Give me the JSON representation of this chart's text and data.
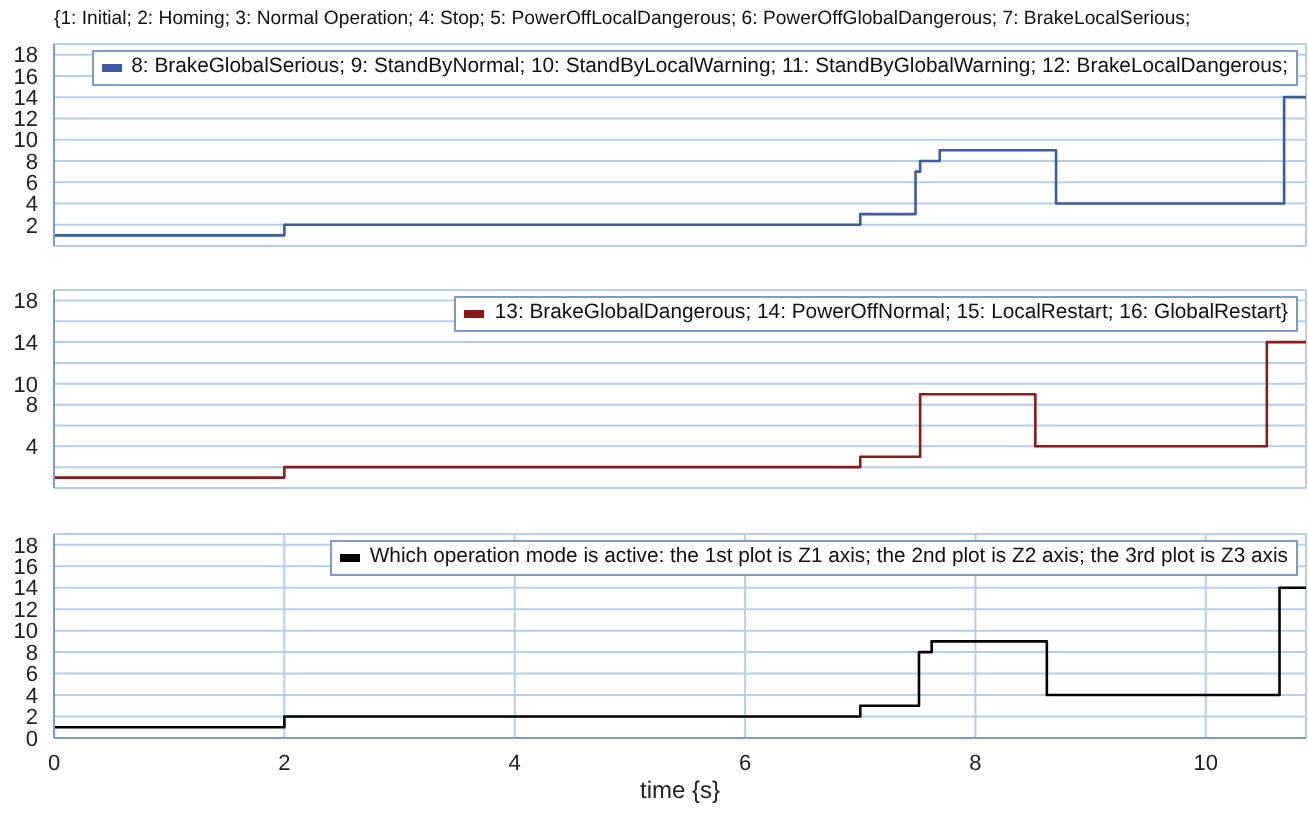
{
  "chart_data": [
    {
      "type": "step",
      "title": "{1: Initial; 2: Homing; 3: Normal Operation; 4: Stop; 5: PowerOffLocalDangerous; 6: PowerOffGlobalDangerous; 7: BrakeLocalSerious;",
      "series": [
        {
          "name": "8: BrakeGlobalSerious; 9: StandByNormal; 10: StandByLocalWarning; 11: StandByGlobalWarning; 12: BrakeLocalDangerous;",
          "color": "#3b5ba5",
          "x": [
            0,
            2,
            7,
            7.48,
            7.52,
            7.69,
            8.7,
            10.68,
            10.87
          ],
          "values": [
            1,
            2,
            3,
            7,
            8,
            9,
            4,
            14,
            14
          ]
        }
      ],
      "xlim": [
        0,
        10.87
      ],
      "xticks": [
        0,
        2,
        4,
        6,
        8,
        10
      ],
      "ylim": [
        0,
        19
      ],
      "yticks": [
        2,
        4,
        6,
        8,
        10,
        12,
        14,
        16,
        18
      ],
      "grid": true,
      "legend": "top right",
      "tick_labels": "y"
    },
    {
      "type": "step",
      "series": [
        {
          "name": "13: BrakeGlobalDangerous; 14: PowerOffNormal; 15: LocalRestart; 16: GlobalRestart}",
          "color": "#8b1a1a",
          "x": [
            0,
            2,
            7,
            7.52,
            8.52,
            10.53,
            10.87
          ],
          "values": [
            1,
            2,
            3,
            9,
            4,
            14,
            14
          ]
        }
      ],
      "xlim": [
        0,
        10.87
      ],
      "xticks": [
        0,
        2,
        4,
        6,
        8,
        10
      ],
      "ylim": [
        0,
        19
      ],
      "yticks": [
        {
          "value": 2,
          "label": null
        },
        4,
        {
          "value": 6,
          "label": null
        },
        8,
        10,
        {
          "value": 12,
          "label": null
        },
        14,
        {
          "value": 16,
          "label": null
        },
        18
      ],
      "grid": true,
      "legend": "top right",
      "tick_labels": "y"
    },
    {
      "type": "step",
      "xlabel": "time {s}",
      "series": [
        {
          "name": "Which operation mode is active: the 1st plot is Z1 axis; the 2nd plot is Z2 axis; the 3rd plot is Z3 axis",
          "color": "#000000",
          "x": [
            0,
            2,
            7,
            7.51,
            7.62,
            8.62,
            10.64,
            10.87
          ],
          "values": [
            1,
            2,
            3,
            8,
            9,
            4,
            14,
            14
          ]
        }
      ],
      "xlim": [
        0,
        10.87
      ],
      "xticks": [
        0,
        2,
        4,
        6,
        8,
        10
      ],
      "ylim": [
        0,
        19
      ],
      "yticks": [
        0,
        2,
        4,
        6,
        8,
        10,
        12,
        14,
        16,
        18
      ],
      "grid": true,
      "legend": "top right"
    }
  ]
}
